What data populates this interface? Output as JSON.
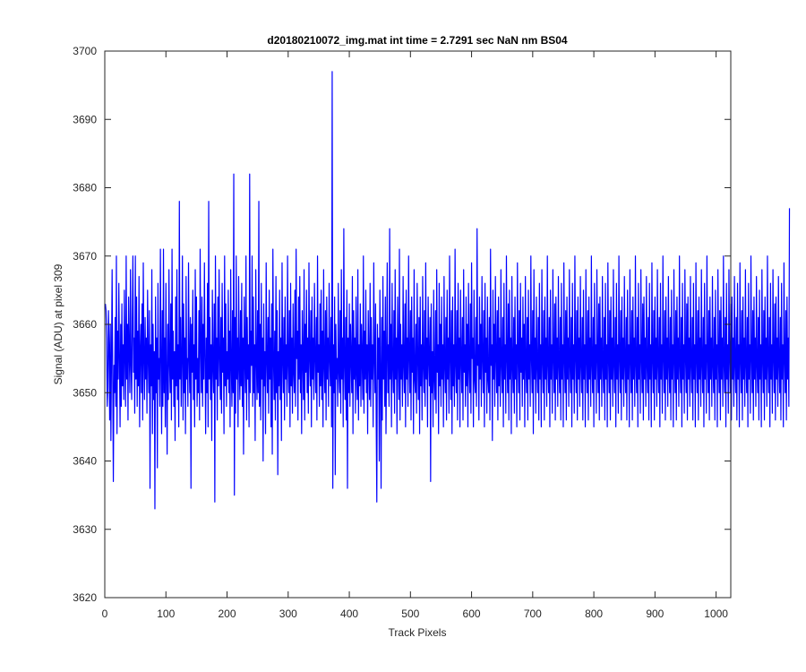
{
  "chart_data": {
    "type": "line",
    "title": "d20180210072_img.mat int time = 2.7291 sec  NaN nm BS04",
    "xlabel": "Track Pixels",
    "ylabel": "Signal (ADU) at pixel 309",
    "xlim": [
      0,
      1024
    ],
    "ylim": [
      3620,
      3700
    ],
    "xticks": [
      0,
      100,
      200,
      300,
      400,
      500,
      600,
      700,
      800,
      900,
      1000
    ],
    "yticks": [
      3620,
      3630,
      3640,
      3650,
      3660,
      3670,
      3680,
      3690,
      3700
    ],
    "xtick_labels": [
      "0",
      "100",
      "200",
      "300",
      "400",
      "500",
      "600",
      "700",
      "800",
      "900",
      "1000"
    ],
    "ytick_labels": [
      "3620",
      "3630",
      "3640",
      "3650",
      "3660",
      "3670",
      "3680",
      "3690",
      "3700"
    ],
    "grid": false,
    "series": [
      {
        "color": "#0000ff",
        "x_start": 1,
        "x_step": 1,
        "values": [
          3663,
          3662,
          3658,
          3648,
          3651,
          3662,
          3657,
          3646,
          3660,
          3643,
          3655,
          3668,
          3652,
          3637,
          3654,
          3650,
          3661,
          3648,
          3670,
          3644,
          3659,
          3652,
          3666,
          3655,
          3645,
          3660,
          3648,
          3663,
          3651,
          3657,
          3649,
          3665,
          3655,
          3648,
          3670,
          3652,
          3660,
          3646,
          3664,
          3656,
          3650,
          3668,
          3654,
          3649,
          3661,
          3670,
          3653,
          3658,
          3647,
          3670,
          3652,
          3664,
          3648,
          3659,
          3651,
          3667,
          3645,
          3656,
          3660,
          3650,
          3663,
          3646,
          3669,
          3655,
          3649,
          3661,
          3652,
          3658,
          3647,
          3665,
          3655,
          3650,
          3662,
          3636,
          3657,
          3651,
          3668,
          3644,
          3660,
          3649,
          3656,
          3633,
          3664,
          3650,
          3658,
          3639,
          3666,
          3652,
          3655,
          3648,
          3671,
          3655,
          3644,
          3662,
          3648,
          3671,
          3650,
          3658,
          3645,
          3666,
          3653,
          3641,
          3660,
          3649,
          3668,
          3654,
          3650,
          3663,
          3646,
          3671,
          3652,
          3659,
          3648,
          3656,
          3643,
          3664,
          3651,
          3668,
          3649,
          3657,
          3645,
          3678,
          3652,
          3661,
          3648,
          3655,
          3670,
          3646,
          3663,
          3650,
          3658,
          3644,
          3667,
          3652,
          3655,
          3648,
          3669,
          3655,
          3650,
          3661,
          3636,
          3660,
          3653,
          3665,
          3649,
          3657,
          3645,
          3668,
          3652,
          3664,
          3648,
          3655,
          3650,
          3662,
          3646,
          3671,
          3657,
          3650,
          3664,
          3648,
          3660,
          3652,
          3669,
          3655,
          3644,
          3658,
          3650,
          3666,
          3645,
          3678,
          3652,
          3661,
          3649,
          3657,
          3643,
          3665,
          3654,
          3650,
          3663,
          3634,
          3670,
          3652,
          3658,
          3646,
          3664,
          3651,
          3668,
          3655,
          3649,
          3661,
          3647,
          3666,
          3653,
          3658,
          3644,
          3670,
          3651,
          3663,
          3648,
          3656,
          3652,
          3665,
          3650,
          3659,
          3645,
          3668,
          3654,
          3648,
          3662,
          3650,
          3682,
          3635,
          3661,
          3647,
          3670,
          3652,
          3658,
          3645,
          3667,
          3654,
          3649,
          3662,
          3651,
          3666,
          3648,
          3658,
          3641,
          3664,
          3655,
          3650,
          3670,
          3646,
          3661,
          3652,
          3657,
          3645,
          3682,
          3650,
          3659,
          3654,
          3670,
          3648,
          3664,
          3650,
          3657,
          3643,
          3668,
          3655,
          3649,
          3662,
          3650,
          3678,
          3648,
          3660,
          3646,
          3666,
          3652,
          3658,
          3640,
          3663,
          3651,
          3656,
          3644,
          3669,
          3655,
          3650,
          3661,
          3647,
          3665,
          3652,
          3658,
          3645,
          3663,
          3641,
          3671,
          3655,
          3649,
          3659,
          3646,
          3667,
          3650,
          3662,
          3638,
          3656,
          3651,
          3665,
          3649,
          3658,
          3643,
          3669,
          3655,
          3650,
          3661,
          3646,
          3664,
          3652,
          3657,
          3648,
          3670,
          3654,
          3650,
          3662,
          3645,
          3666,
          3651,
          3658,
          3647,
          3663,
          3653,
          3650,
          3665,
          3648,
          3671,
          3655,
          3659,
          3646,
          3664,
          3652,
          3667,
          3650,
          3657,
          3644,
          3662,
          3655,
          3649,
          3668,
          3646,
          3660,
          3653,
          3665,
          3650,
          3658,
          3647,
          3669,
          3655,
          3651,
          3662,
          3645,
          3664,
          3652,
          3658,
          3649,
          3666,
          3655,
          3650,
          3661,
          3646,
          3670,
          3653,
          3657,
          3648,
          3663,
          3651,
          3665,
          3649,
          3659,
          3645,
          3668,
          3654,
          3650,
          3662,
          3646,
          3664,
          3652,
          3658,
          3648,
          3666,
          3655,
          3651,
          3661,
          3645,
          3697,
          3636,
          3657,
          3650,
          3664,
          3638,
          3660,
          3652,
          3655,
          3648,
          3666,
          3653,
          3650,
          3662,
          3647,
          3668,
          3652,
          3658,
          3645,
          3674,
          3654,
          3649,
          3661,
          3646,
          3665,
          3636,
          3658,
          3650,
          3663,
          3648,
          3660,
          3655,
          3650,
          3667,
          3644,
          3662,
          3652,
          3658,
          3647,
          3664,
          3653,
          3649,
          3668,
          3646,
          3657,
          3651,
          3663,
          3648,
          3660,
          3655,
          3649,
          3670,
          3647,
          3659,
          3652,
          3665,
          3650,
          3657,
          3644,
          3662,
          3655,
          3649,
          3666,
          3648,
          3661,
          3652,
          3657,
          3645,
          3669,
          3655,
          3650,
          3663,
          3646,
          3634,
          3660,
          3652,
          3658,
          3640,
          3665,
          3654,
          3636,
          3661,
          3646,
          3667,
          3652,
          3659,
          3648,
          3664,
          3644,
          3655,
          3669,
          3650,
          3657,
          3648,
          3674,
          3652,
          3660,
          3645,
          3666,
          3654,
          3650,
          3662,
          3647,
          3668,
          3652,
          3658,
          3644,
          3664,
          3655,
          3649,
          3671,
          3646,
          3660,
          3652,
          3657,
          3648,
          3667,
          3654,
          3650,
          3663,
          3645,
          3665,
          3652,
          3658,
          3648,
          3670,
          3655,
          3650,
          3662,
          3646,
          3664,
          3653,
          3658,
          3644,
          3668,
          3652,
          3650,
          3660,
          3647,
          3666,
          3655,
          3649,
          3661,
          3644,
          3664,
          3651,
          3657,
          3646,
          3667,
          3654,
          3650,
          3662,
          3648,
          3669,
          3652,
          3658,
          3645,
          3664,
          3655,
          3651,
          3661,
          3637,
          3663,
          3650,
          3656,
          3645,
          3665,
          3652,
          3649,
          3662,
          3647,
          3668,
          3653,
          3657,
          3644,
          3666,
          3651,
          3660,
          3648,
          3664,
          3652,
          3657,
          3645,
          3667,
          3654,
          3650,
          3661,
          3646,
          3665,
          3652,
          3658,
          3647,
          3670,
          3655,
          3649,
          3662,
          3644,
          3664,
          3651,
          3657,
          3648,
          3671,
          3654,
          3650,
          3662,
          3646,
          3666,
          3652,
          3658,
          3645,
          3665,
          3655,
          3650,
          3661,
          3646,
          3668,
          3653,
          3657,
          3648,
          3664,
          3651,
          3660,
          3645,
          3666,
          3654,
          3650,
          3663,
          3647,
          3669,
          3655,
          3658,
          3645,
          3665,
          3652,
          3650,
          3661,
          3648,
          3674,
          3654,
          3657,
          3646,
          3664,
          3652,
          3660,
          3648,
          3667,
          3655,
          3650,
          3662,
          3645,
          3666,
          3653,
          3658,
          3647,
          3664,
          3652,
          3650,
          3661,
          3646,
          3671,
          3654,
          3657,
          3643,
          3665,
          3652,
          3660,
          3648,
          3667,
          3655,
          3650,
          3662,
          3646,
          3664,
          3651,
          3658,
          3648,
          3668,
          3654,
          3650,
          3661,
          3645,
          3666,
          3652,
          3657,
          3647,
          3670,
          3655,
          3650,
          3663,
          3646,
          3665,
          3652,
          3658,
          3644,
          3667,
          3654,
          3650,
          3661,
          3647,
          3664,
          3652,
          3657,
          3645,
          3669,
          3655,
          3650,
          3662,
          3646,
          3666,
          3653,
          3658,
          3648,
          3664,
          3652,
          3660,
          3645,
          3667,
          3654,
          3650,
          3661,
          3646,
          3665,
          3652,
          3657,
          3648,
          3670,
          3655,
          3650,
          3662,
          3644,
          3668,
          3652,
          3658,
          3647,
          3664,
          3654,
          3650,
          3661,
          3646,
          3666,
          3652,
          3657,
          3645,
          3668,
          3655,
          3650,
          3662,
          3646,
          3664,
          3652,
          3658,
          3648,
          3670,
          3654,
          3650,
          3661,
          3645,
          3665,
          3652,
          3657,
          3647,
          3668,
          3655,
          3650,
          3663,
          3646,
          3664,
          3652,
          3658,
          3648,
          3667,
          3654,
          3650,
          3661,
          3646,
          3666,
          3652,
          3657,
          3645,
          3669,
          3655,
          3650,
          3662,
          3646,
          3664,
          3652,
          3658,
          3648,
          3668,
          3654,
          3650,
          3661,
          3645,
          3666,
          3652,
          3657,
          3647,
          3670,
          3655,
          3650,
          3662,
          3646,
          3664,
          3652,
          3658,
          3648,
          3667,
          3654,
          3650,
          3661,
          3646,
          3665,
          3652,
          3657,
          3645,
          3668,
          3655,
          3650,
          3662,
          3646,
          3664,
          3652,
          3658,
          3648,
          3670,
          3654,
          3650,
          3661,
          3645,
          3666,
          3652,
          3657,
          3647,
          3668,
          3655,
          3650,
          3663,
          3646,
          3664,
          3652,
          3658,
          3648,
          3667,
          3654,
          3650,
          3661,
          3646,
          3666,
          3652,
          3657,
          3645,
          3669,
          3655,
          3650,
          3662,
          3646,
          3664,
          3652,
          3658,
          3648,
          3668,
          3654,
          3650,
          3661,
          3645,
          3666,
          3652,
          3657,
          3647,
          3670,
          3655,
          3650,
          3662,
          3646,
          3664,
          3652,
          3658,
          3648,
          3667,
          3654,
          3650,
          3661,
          3646,
          3665,
          3652,
          3657,
          3645,
          3668,
          3655,
          3650,
          3662,
          3646,
          3664,
          3652,
          3658,
          3648,
          3670,
          3654,
          3650,
          3661,
          3645,
          3666,
          3652,
          3657,
          3647,
          3668,
          3655,
          3650,
          3663,
          3646,
          3664,
          3652,
          3658,
          3648,
          3667,
          3654,
          3650,
          3661,
          3646,
          3666,
          3652,
          3657,
          3645,
          3669,
          3655,
          3650,
          3662,
          3646,
          3664,
          3652,
          3658,
          3648,
          3668,
          3654,
          3650,
          3661,
          3645,
          3666,
          3652,
          3657,
          3647,
          3670,
          3655,
          3650,
          3662,
          3646,
          3664,
          3652,
          3658,
          3648,
          3667,
          3654,
          3650,
          3661,
          3646,
          3665,
          3652,
          3657,
          3645,
          3668,
          3655,
          3650,
          3662,
          3646,
          3664,
          3652,
          3658,
          3648,
          3670,
          3654,
          3650,
          3661,
          3645,
          3666,
          3652,
          3657,
          3647,
          3668,
          3655,
          3650,
          3663,
          3646,
          3664,
          3652,
          3658,
          3648,
          3667,
          3654,
          3650,
          3661,
          3646,
          3666,
          3652,
          3657,
          3645,
          3669,
          3655,
          3650,
          3662,
          3646,
          3664,
          3652,
          3658,
          3648,
          3668,
          3654,
          3650,
          3661,
          3645,
          3666,
          3652,
          3657,
          3647,
          3670,
          3655,
          3650,
          3662,
          3646,
          3664,
          3652,
          3658,
          3648,
          3667,
          3654,
          3650,
          3661,
          3646,
          3665,
          3652,
          3657,
          3645,
          3668,
          3655,
          3650,
          3662,
          3646,
          3664,
          3652,
          3658,
          3648,
          3670,
          3654,
          3650,
          3661,
          3645,
          3666,
          3652,
          3657,
          3647,
          3668,
          3655,
          3650,
          3663,
          3646,
          3664,
          3652,
          3658,
          3648,
          3667,
          3654,
          3650,
          3661,
          3646,
          3666,
          3652,
          3657,
          3645,
          3669,
          3655,
          3650,
          3662,
          3646,
          3664,
          3652,
          3658,
          3648,
          3668,
          3654,
          3650,
          3661,
          3645,
          3666,
          3652,
          3657,
          3647,
          3670,
          3655,
          3650,
          3662,
          3646,
          3664,
          3652,
          3658,
          3648,
          3667,
          3654,
          3650,
          3661,
          3646,
          3665,
          3652,
          3657,
          3645,
          3668,
          3655,
          3650,
          3662,
          3646,
          3664,
          3652,
          3658,
          3648,
          3670,
          3654,
          3650,
          3661,
          3645,
          3666,
          3652,
          3657,
          3647,
          3668,
          3655,
          3650,
          3663,
          3646,
          3664,
          3652,
          3658,
          3648,
          3667,
          3654,
          3650,
          3661,
          3646,
          3666,
          3652,
          3657,
          3645,
          3669,
          3655,
          3650,
          3662,
          3646,
          3664,
          3652,
          3658,
          3648,
          3677
        ]
      }
    ]
  }
}
